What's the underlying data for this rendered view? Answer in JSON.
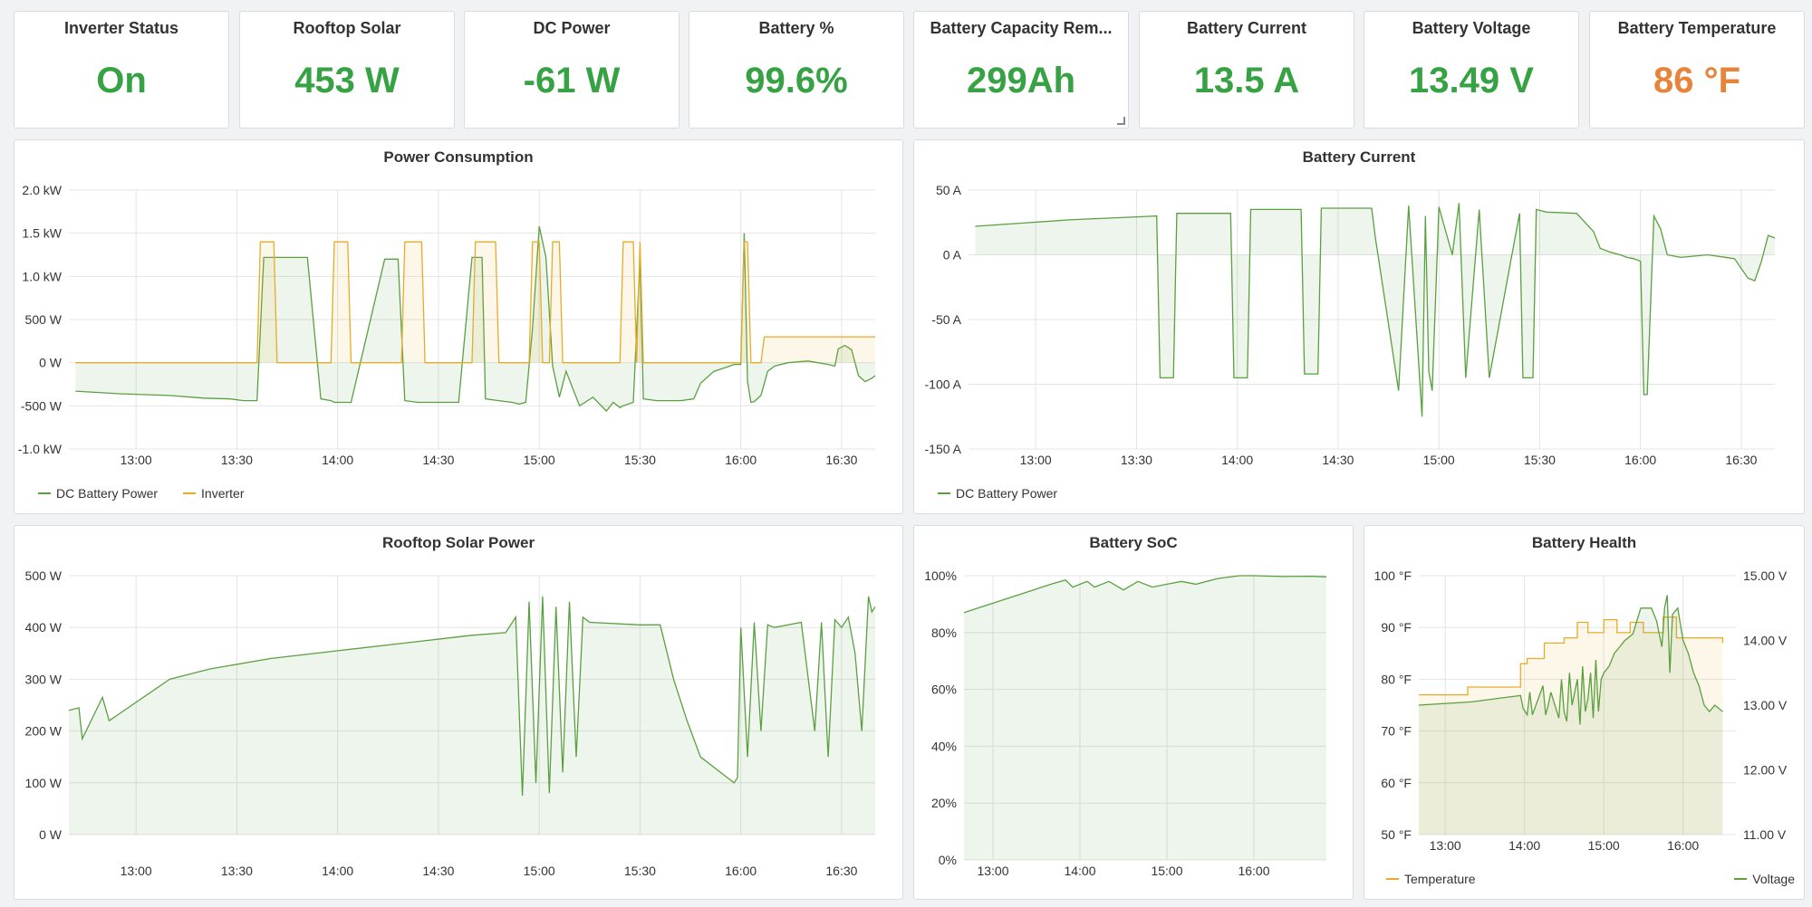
{
  "colors": {
    "green": "#37a244",
    "orange": "#e8843a",
    "line_green": "#5aa040",
    "line_yellow": "#e5ac2b"
  },
  "stats": [
    {
      "title": "Inverter Status",
      "value": "On",
      "color": "#37a244"
    },
    {
      "title": "Rooftop Solar",
      "value": "453 W",
      "color": "#37a244"
    },
    {
      "title": "DC Power",
      "value": "-61 W",
      "color": "#37a244"
    },
    {
      "title": "Battery %",
      "value": "99.6%",
      "color": "#37a244"
    },
    {
      "title": "Battery Capacity Rem...",
      "value": "299Ah",
      "color": "#37a244"
    },
    {
      "title": "Battery Current",
      "value": "13.5 A",
      "color": "#37a244"
    },
    {
      "title": "Battery Voltage",
      "value": "13.49 V",
      "color": "#37a244"
    },
    {
      "title": "Battery Temperature",
      "value": "86 °F",
      "color": "#e8843a"
    }
  ],
  "panels": {
    "power": {
      "title": "Power Consumption",
      "legend": [
        "DC Battery Power",
        "Inverter"
      ]
    },
    "current": {
      "title": "Battery Current",
      "legend": [
        "DC Battery Power"
      ]
    },
    "solar": {
      "title": "Rooftop Solar Power"
    },
    "soc": {
      "title": "Battery SoC"
    },
    "health": {
      "title": "Battery Health",
      "legend": [
        "Temperature",
        "Voltage"
      ]
    }
  },
  "chart_data": [
    {
      "type": "line",
      "title": "Power Consumption",
      "unit": "W",
      "ylim": [
        -1000,
        2000
      ],
      "y_ticks": [
        -1000,
        -500,
        0,
        500,
        1000,
        1500,
        2000
      ],
      "y_tick_labels": [
        "-1.0 kW",
        "-500 W",
        "0 W",
        "500 W",
        "1.0 kW",
        "1.5 kW",
        "2.0 kW"
      ],
      "x_range": [
        760,
        1000
      ],
      "x_ticks": [
        780,
        810,
        840,
        870,
        900,
        930,
        960,
        990
      ],
      "x_tick_labels": [
        "13:00",
        "13:30",
        "14:00",
        "14:30",
        "15:00",
        "15:30",
        "16:00",
        "16:30"
      ],
      "series": [
        {
          "name": "DC Battery Power",
          "x": [
            762,
            775,
            790,
            800,
            808,
            812,
            816,
            818,
            831,
            835,
            838,
            839,
            844,
            854,
            858,
            860,
            864,
            870,
            876,
            880,
            883,
            884,
            888,
            890,
            892,
            894,
            896,
            898,
            900,
            902,
            904,
            906,
            908,
            912,
            916,
            920,
            922,
            924,
            925,
            928,
            930,
            931,
            935,
            942,
            946,
            948,
            952,
            956,
            958,
            960,
            961,
            962,
            963,
            964,
            966,
            968,
            970,
            974,
            980,
            986,
            988,
            989,
            991,
            993,
            995,
            997,
            999,
            1000
          ],
          "values": [
            -330,
            -360,
            -380,
            -410,
            -420,
            -440,
            -440,
            1220,
            1220,
            -420,
            -440,
            -460,
            -460,
            1200,
            1200,
            -440,
            -460,
            -460,
            -460,
            1220,
            1220,
            -420,
            -440,
            -450,
            -460,
            -480,
            -460,
            400,
            1580,
            1220,
            -40,
            -400,
            -100,
            -500,
            -400,
            -560,
            -460,
            -520,
            -500,
            -460,
            1200,
            -420,
            -440,
            -440,
            -420,
            -240,
            -100,
            -50,
            -20,
            -20,
            1500,
            -220,
            -460,
            -450,
            -380,
            -100,
            -40,
            0,
            20,
            -20,
            -40,
            160,
            200,
            150,
            -150,
            -220,
            -180,
            -150
          ]
        },
        {
          "name": "Inverter",
          "x": [
            762,
            816,
            817,
            821,
            822,
            838,
            839,
            843,
            844,
            859,
            860,
            865,
            866,
            880,
            881,
            887,
            888,
            897,
            898,
            900,
            901,
            903,
            904,
            906,
            907,
            924,
            925,
            928,
            929,
            930,
            931,
            960,
            961,
            962,
            963,
            963.5,
            964,
            966,
            967,
            1000
          ],
          "values": [
            0,
            0,
            1400,
            1400,
            0,
            0,
            1400,
            1400,
            0,
            0,
            1400,
            1400,
            0,
            0,
            1400,
            1400,
            0,
            0,
            1400,
            1400,
            0,
            0,
            1400,
            1400,
            0,
            0,
            1400,
            1400,
            0,
            1400,
            0,
            0,
            1400,
            1400,
            0,
            0,
            0,
            0,
            300,
            300
          ]
        }
      ]
    },
    {
      "type": "line",
      "title": "Battery Current",
      "unit": "A",
      "ylim": [
        -150,
        50
      ],
      "y_ticks": [
        -150,
        -100,
        -50,
        0,
        50
      ],
      "y_tick_labels": [
        "-150 A",
        "-100 A",
        "-50 A",
        "0 A",
        "50 A"
      ],
      "x_range": [
        760,
        1000
      ],
      "x_ticks": [
        780,
        810,
        840,
        870,
        900,
        930,
        960,
        990
      ],
      "x_tick_labels": [
        "13:00",
        "13:30",
        "14:00",
        "14:30",
        "15:00",
        "15:30",
        "16:00",
        "16:30"
      ],
      "series": [
        {
          "name": "DC Battery Power",
          "x": [
            762,
            790,
            816,
            817,
            821,
            822,
            838,
            839,
            843,
            844,
            859,
            860,
            864,
            865,
            880,
            881,
            888,
            891,
            895,
            896,
            897,
            898,
            900,
            904,
            906,
            908,
            912,
            915,
            924,
            925,
            928,
            929,
            932,
            941,
            946,
            948,
            951,
            954,
            956,
            958,
            960,
            961,
            962,
            964,
            966,
            968,
            972,
            980,
            988,
            992,
            994,
            996,
            998,
            1000
          ],
          "values": [
            22,
            27,
            30,
            -95,
            -95,
            32,
            32,
            -95,
            -95,
            35,
            35,
            -92,
            -92,
            36,
            36,
            15,
            -105,
            38,
            -125,
            30,
            -90,
            -105,
            37,
            0,
            40,
            -95,
            35,
            -95,
            32,
            -95,
            -95,
            35,
            33,
            32,
            18,
            5,
            2,
            0,
            -2,
            -3,
            -5,
            -108,
            -108,
            30,
            20,
            0,
            -2,
            0,
            -3,
            -18,
            -20,
            -5,
            15,
            13
          ]
        }
      ]
    },
    {
      "type": "area",
      "title": "Rooftop Solar Power",
      "unit": "W",
      "ylim": [
        0,
        500
      ],
      "y_ticks": [
        0,
        100,
        200,
        300,
        400,
        500
      ],
      "y_tick_labels": [
        "0 W",
        "100 W",
        "200 W",
        "300 W",
        "400 W",
        "500 W"
      ],
      "x_range": [
        760,
        1000
      ],
      "x_ticks": [
        780,
        810,
        840,
        870,
        900,
        930,
        960,
        990
      ],
      "x_tick_labels": [
        "13:00",
        "13:30",
        "14:00",
        "14:30",
        "15:00",
        "15:30",
        "16:00",
        "16:30"
      ],
      "series": [
        {
          "name": "Rooftop Solar",
          "x": [
            760,
            763,
            764,
            770,
            772,
            790,
            802,
            820,
            840,
            860,
            880,
            890,
            893,
            895,
            897,
            899,
            901,
            903,
            905,
            907,
            909,
            911,
            913,
            915,
            930,
            936,
            940,
            944,
            948,
            954,
            958,
            959,
            960,
            962,
            964,
            966,
            968,
            970,
            978,
            982,
            984,
            986,
            988,
            990,
            992,
            994,
            996,
            998,
            999,
            1000
          ],
          "values": [
            240,
            245,
            185,
            265,
            220,
            300,
            320,
            340,
            355,
            370,
            385,
            390,
            420,
            75,
            450,
            100,
            460,
            80,
            440,
            120,
            450,
            150,
            420,
            410,
            405,
            405,
            300,
            220,
            150,
            120,
            100,
            110,
            400,
            150,
            410,
            200,
            405,
            400,
            410,
            200,
            410,
            150,
            415,
            400,
            420,
            350,
            200,
            460,
            430,
            440
          ]
        }
      ]
    },
    {
      "type": "area",
      "title": "Battery SoC",
      "unit": "%",
      "ylim": [
        0,
        100
      ],
      "y_ticks": [
        0,
        20,
        40,
        60,
        80,
        100
      ],
      "y_tick_labels": [
        "0%",
        "20%",
        "40%",
        "60%",
        "80%",
        "100%"
      ],
      "x_range": [
        760,
        1010
      ],
      "x_ticks": [
        780,
        840,
        900,
        960
      ],
      "x_tick_labels": [
        "13:00",
        "14:00",
        "15:00",
        "16:00"
      ],
      "series": [
        {
          "name": "Battery SoC",
          "x": [
            760,
            790,
            820,
            830,
            835,
            845,
            850,
            860,
            870,
            880,
            890,
            900,
            910,
            920,
            935,
            950,
            960,
            980,
            1000,
            1010
          ],
          "values": [
            87,
            92,
            97,
            98.5,
            96,
            98,
            96,
            98,
            95,
            98,
            96,
            97,
            98,
            97,
            99,
            100,
            100,
            99.7,
            99.8,
            99.6
          ]
        }
      ]
    },
    {
      "type": "line",
      "title": "Battery Health",
      "ylim": [
        50,
        100
      ],
      "y_ticks": [
        50,
        60,
        70,
        80,
        90,
        100
      ],
      "y_tick_labels": [
        "50 °F",
        "60 °F",
        "70 °F",
        "80 °F",
        "90 °F",
        "100 °F"
      ],
      "y2lim": [
        11.0,
        15.0
      ],
      "y2_ticks": [
        11,
        12,
        13,
        14,
        15
      ],
      "y2_tick_labels": [
        "11.00 V",
        "12.00 V",
        "13.00 V",
        "14.00 V",
        "15.00 V"
      ],
      "x_range": [
        760,
        1000
      ],
      "x_ticks": [
        780,
        840,
        900,
        960
      ],
      "x_tick_labels": [
        "13:00",
        "14:00",
        "15:00",
        "16:00"
      ],
      "series": [
        {
          "name": "Temperature",
          "axis": "left",
          "x": [
            760,
            797,
            797,
            837,
            837,
            842,
            842,
            855,
            855,
            870,
            870,
            880,
            880,
            888,
            888,
            900,
            900,
            910,
            910,
            920,
            920,
            930,
            930,
            945,
            945,
            955,
            955,
            990,
            990
          ],
          "values": [
            77,
            77,
            78.5,
            78.5,
            83,
            83,
            84,
            84,
            87,
            87,
            88,
            88,
            91,
            91,
            89,
            89,
            91.5,
            91.5,
            89,
            89,
            91,
            91,
            89,
            89,
            92,
            92,
            88,
            88,
            87
          ]
        },
        {
          "name": "Voltage",
          "axis": "right",
          "x": [
            760,
            800,
            837,
            839,
            842,
            844,
            846,
            854,
            856,
            858,
            860,
            866,
            868,
            870,
            872,
            874,
            876,
            880,
            882,
            884,
            886,
            888,
            890,
            892,
            894,
            896,
            898,
            900,
            904,
            908,
            912,
            916,
            922,
            928,
            936,
            940,
            944,
            946,
            948,
            950,
            952,
            956,
            960,
            964,
            968,
            972,
            976,
            980,
            984,
            990
          ],
          "values": [
            13.0,
            13.05,
            13.15,
            12.95,
            12.85,
            13.2,
            12.85,
            13.3,
            12.85,
            13.0,
            13.2,
            12.8,
            13.4,
            12.9,
            12.75,
            13.5,
            13.0,
            13.4,
            12.7,
            13.6,
            12.9,
            13.1,
            13.5,
            12.8,
            13.7,
            12.9,
            13.4,
            13.5,
            13.6,
            13.8,
            13.9,
            14.0,
            14.1,
            14.5,
            14.5,
            14.3,
            13.9,
            14.5,
            14.7,
            13.5,
            14.4,
            14.5,
            14.0,
            13.8,
            13.5,
            13.3,
            13.0,
            12.9,
            13.0,
            12.9
          ]
        }
      ]
    }
  ]
}
